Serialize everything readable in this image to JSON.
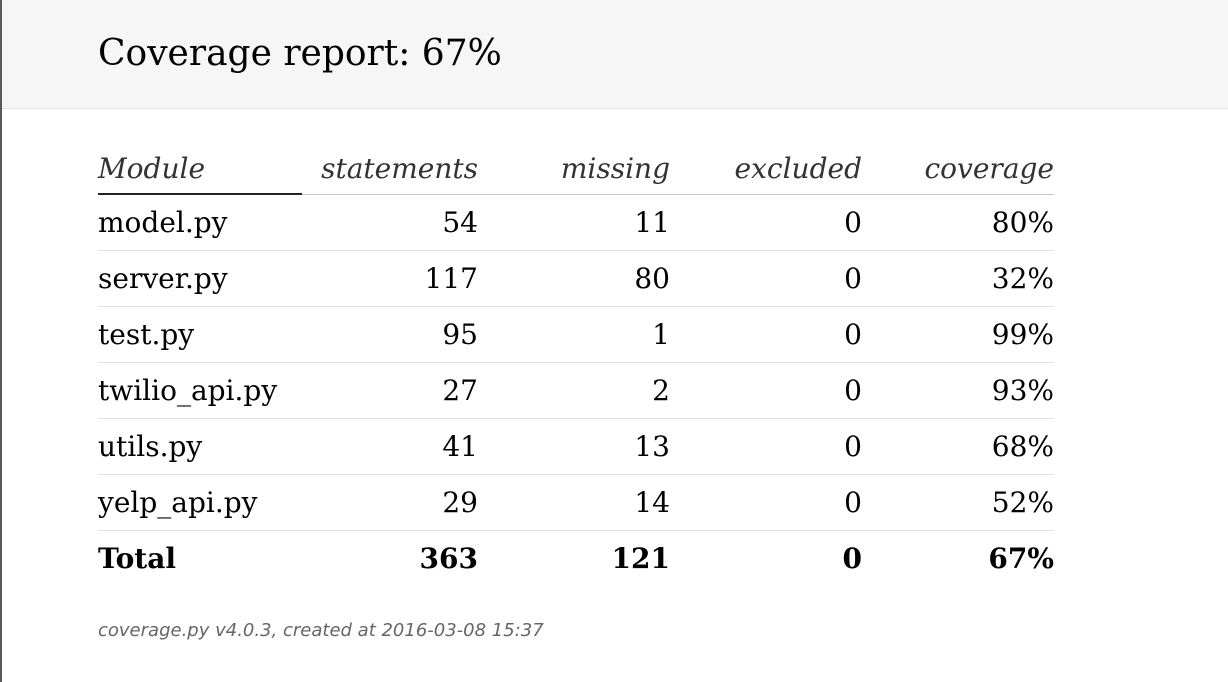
{
  "header": {
    "title": "Coverage report: 67%"
  },
  "table": {
    "columns": [
      "Module",
      "statements",
      "missing",
      "excluded",
      "coverage"
    ],
    "rows": [
      {
        "module": "model.py",
        "statements": "54",
        "missing": "11",
        "excluded": "0",
        "coverage": "80%"
      },
      {
        "module": "server.py",
        "statements": "117",
        "missing": "80",
        "excluded": "0",
        "coverage": "32%"
      },
      {
        "module": "test.py",
        "statements": "95",
        "missing": "1",
        "excluded": "0",
        "coverage": "99%"
      },
      {
        "module": "twilio_api.py",
        "statements": "27",
        "missing": "2",
        "excluded": "0",
        "coverage": "93%"
      },
      {
        "module": "utils.py",
        "statements": "41",
        "missing": "13",
        "excluded": "0",
        "coverage": "68%"
      },
      {
        "module": "yelp_api.py",
        "statements": "29",
        "missing": "14",
        "excluded": "0",
        "coverage": "52%"
      }
    ],
    "total": {
      "module": "Total",
      "statements": "363",
      "missing": "121",
      "excluded": "0",
      "coverage": "67%"
    }
  },
  "footer": {
    "text": "coverage.py v4.0.3, created at 2016-03-08 15:37"
  }
}
